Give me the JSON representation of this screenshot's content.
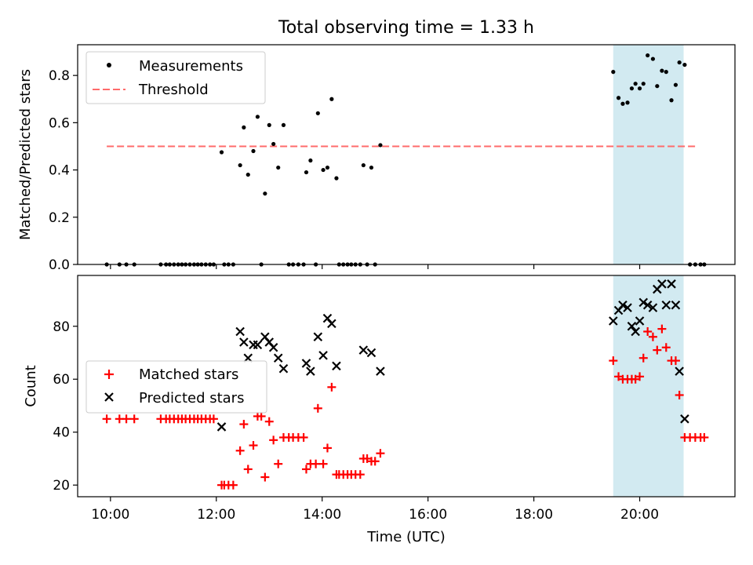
{
  "chart_data": {
    "title": "Total observing time = 1.33 h",
    "xlabel": "Time (UTC)",
    "x_ticks": [
      "10:00",
      "12:00",
      "14:00",
      "16:00",
      "18:00",
      "20:00"
    ],
    "x_tick_hours": [
      10,
      12,
      14,
      16,
      18,
      20
    ],
    "xlim_hours": [
      9.38,
      21.8
    ],
    "highlight_band_hours": [
      19.5,
      20.83
    ],
    "colors": {
      "measurements": "#000000",
      "threshold": "#ff6b6b",
      "matched": "#ff0000",
      "predicted": "#000000",
      "band": "#add8e6"
    },
    "panels": [
      {
        "type": "scatter",
        "ylabel": "Matched/Predicted stars",
        "ylim": [
          0,
          0.93
        ],
        "y_ticks": [
          "0.0",
          "0.2",
          "0.4",
          "0.6",
          "0.8"
        ],
        "y_tick_values": [
          0,
          0.2,
          0.4,
          0.6,
          0.8
        ],
        "legend": {
          "placement": "upper left",
          "entries": [
            "Measurements",
            "Threshold"
          ]
        },
        "threshold": {
          "name": "Threshold",
          "value": 0.5,
          "x_start_hours": 9.93,
          "x_end_hours": 21.1
        },
        "series": [
          {
            "name": "Measurements",
            "points": [
              [
                9.93,
                0
              ],
              [
                10.17,
                0
              ],
              [
                10.3,
                0
              ],
              [
                10.45,
                0
              ],
              [
                10.95,
                0
              ],
              [
                11.05,
                0
              ],
              [
                11.12,
                0
              ],
              [
                11.2,
                0
              ],
              [
                11.28,
                0
              ],
              [
                11.35,
                0
              ],
              [
                11.42,
                0
              ],
              [
                11.5,
                0
              ],
              [
                11.58,
                0
              ],
              [
                11.65,
                0
              ],
              [
                11.72,
                0
              ],
              [
                11.8,
                0
              ],
              [
                11.88,
                0
              ],
              [
                11.95,
                0
              ],
              [
                12.1,
                0.475
              ],
              [
                12.15,
                0
              ],
              [
                12.23,
                0
              ],
              [
                12.32,
                0
              ],
              [
                12.45,
                0.42
              ],
              [
                12.52,
                0.58
              ],
              [
                12.6,
                0.38
              ],
              [
                12.7,
                0.48
              ],
              [
                12.78,
                0.625
              ],
              [
                12.85,
                0
              ],
              [
                12.92,
                0.3
              ],
              [
                13.0,
                0.59
              ],
              [
                13.08,
                0.51
              ],
              [
                13.17,
                0.41
              ],
              [
                13.27,
                0.59
              ],
              [
                13.37,
                0
              ],
              [
                13.45,
                0
              ],
              [
                13.55,
                0
              ],
              [
                13.65,
                0
              ],
              [
                13.7,
                0.39
              ],
              [
                13.78,
                0.44
              ],
              [
                13.88,
                0
              ],
              [
                13.92,
                0.64
              ],
              [
                14.02,
                0.4
              ],
              [
                14.1,
                0.41
              ],
              [
                14.18,
                0.7
              ],
              [
                14.27,
                0.365
              ],
              [
                14.32,
                0
              ],
              [
                14.4,
                0
              ],
              [
                14.48,
                0
              ],
              [
                14.55,
                0
              ],
              [
                14.63,
                0
              ],
              [
                14.72,
                0
              ],
              [
                14.78,
                0.42
              ],
              [
                14.85,
                0
              ],
              [
                14.93,
                0.41
              ],
              [
                15.0,
                0
              ],
              [
                15.1,
                0.505
              ],
              [
                19.5,
                0.815
              ],
              [
                19.6,
                0.705
              ],
              [
                19.68,
                0.68
              ],
              [
                19.77,
                0.685
              ],
              [
                19.85,
                0.745
              ],
              [
                19.92,
                0.765
              ],
              [
                20.0,
                0.745
              ],
              [
                20.07,
                0.765
              ],
              [
                20.15,
                0.885
              ],
              [
                20.25,
                0.87
              ],
              [
                20.33,
                0.755
              ],
              [
                20.42,
                0.82
              ],
              [
                20.5,
                0.815
              ],
              [
                20.6,
                0.695
              ],
              [
                20.68,
                0.76
              ],
              [
                20.75,
                0.855
              ],
              [
                20.85,
                0.845
              ],
              [
                20.95,
                0
              ],
              [
                21.05,
                0
              ],
              [
                21.15,
                0
              ],
              [
                21.22,
                0
              ]
            ]
          }
        ]
      },
      {
        "type": "scatter",
        "ylabel": "Count",
        "ylim": [
          15.6,
          99.2
        ],
        "y_ticks": [
          "20",
          "40",
          "60",
          "80"
        ],
        "y_tick_values": [
          20,
          40,
          60,
          80
        ],
        "legend": {
          "placement": "center left",
          "entries": [
            "Matched stars",
            "Predicted stars"
          ]
        },
        "series": [
          {
            "name": "Matched stars",
            "points": [
              [
                9.93,
                45
              ],
              [
                10.17,
                45
              ],
              [
                10.3,
                45
              ],
              [
                10.45,
                45
              ],
              [
                10.95,
                45
              ],
              [
                11.05,
                45
              ],
              [
                11.12,
                45
              ],
              [
                11.2,
                45
              ],
              [
                11.28,
                45
              ],
              [
                11.35,
                45
              ],
              [
                11.42,
                45
              ],
              [
                11.5,
                45
              ],
              [
                11.58,
                45
              ],
              [
                11.65,
                45
              ],
              [
                11.72,
                45
              ],
              [
                11.8,
                45
              ],
              [
                11.88,
                45
              ],
              [
                11.95,
                45
              ],
              [
                12.1,
                20
              ],
              [
                12.15,
                20
              ],
              [
                12.23,
                20
              ],
              [
                12.32,
                20
              ],
              [
                12.45,
                33
              ],
              [
                12.52,
                43
              ],
              [
                12.6,
                26
              ],
              [
                12.7,
                35
              ],
              [
                12.78,
                46
              ],
              [
                12.85,
                46
              ],
              [
                12.92,
                23
              ],
              [
                13.0,
                44
              ],
              [
                13.08,
                37
              ],
              [
                13.17,
                28
              ],
              [
                13.27,
                38
              ],
              [
                13.37,
                38
              ],
              [
                13.45,
                38
              ],
              [
                13.55,
                38
              ],
              [
                13.65,
                38
              ],
              [
                13.7,
                26
              ],
              [
                13.78,
                28
              ],
              [
                13.88,
                28
              ],
              [
                13.92,
                49
              ],
              [
                14.02,
                28
              ],
              [
                14.1,
                34
              ],
              [
                14.18,
                57
              ],
              [
                14.27,
                24
              ],
              [
                14.32,
                24
              ],
              [
                14.4,
                24
              ],
              [
                14.48,
                24
              ],
              [
                14.55,
                24
              ],
              [
                14.63,
                24
              ],
              [
                14.72,
                24
              ],
              [
                14.78,
                30
              ],
              [
                14.85,
                30
              ],
              [
                14.93,
                29
              ],
              [
                15.0,
                29
              ],
              [
                15.1,
                32
              ],
              [
                19.5,
                67
              ],
              [
                19.6,
                61
              ],
              [
                19.68,
                60
              ],
              [
                19.77,
                60
              ],
              [
                19.85,
                60
              ],
              [
                19.92,
                60
              ],
              [
                20.0,
                61
              ],
              [
                20.07,
                68
              ],
              [
                20.15,
                78
              ],
              [
                20.25,
                76
              ],
              [
                20.33,
                71
              ],
              [
                20.42,
                79
              ],
              [
                20.5,
                72
              ],
              [
                20.6,
                67
              ],
              [
                20.68,
                67
              ],
              [
                20.75,
                54
              ],
              [
                20.85,
                38
              ],
              [
                20.95,
                38
              ],
              [
                21.05,
                38
              ],
              [
                21.15,
                38
              ],
              [
                21.22,
                38
              ]
            ]
          },
          {
            "name": "Predicted stars",
            "points": [
              [
                12.1,
                42
              ],
              [
                12.45,
                78
              ],
              [
                12.52,
                74
              ],
              [
                12.6,
                68
              ],
              [
                12.7,
                73
              ],
              [
                12.78,
                73
              ],
              [
                12.92,
                76
              ],
              [
                13.0,
                74
              ],
              [
                13.08,
                72
              ],
              [
                13.17,
                68
              ],
              [
                13.27,
                64
              ],
              [
                13.7,
                66
              ],
              [
                13.78,
                63
              ],
              [
                13.92,
                76
              ],
              [
                14.02,
                69
              ],
              [
                14.1,
                83
              ],
              [
                14.18,
                81
              ],
              [
                14.27,
                65
              ],
              [
                14.78,
                71
              ],
              [
                14.93,
                70
              ],
              [
                15.1,
                63
              ],
              [
                19.5,
                82
              ],
              [
                19.6,
                86
              ],
              [
                19.68,
                88
              ],
              [
                19.77,
                87
              ],
              [
                19.85,
                80
              ],
              [
                19.92,
                78
              ],
              [
                20.0,
                82
              ],
              [
                20.07,
                89
              ],
              [
                20.15,
                88
              ],
              [
                20.25,
                87
              ],
              [
                20.33,
                94
              ],
              [
                20.42,
                96
              ],
              [
                20.5,
                88
              ],
              [
                20.6,
                96
              ],
              [
                20.68,
                88
              ],
              [
                20.75,
                63
              ],
              [
                20.85,
                45
              ]
            ]
          }
        ]
      }
    ]
  }
}
